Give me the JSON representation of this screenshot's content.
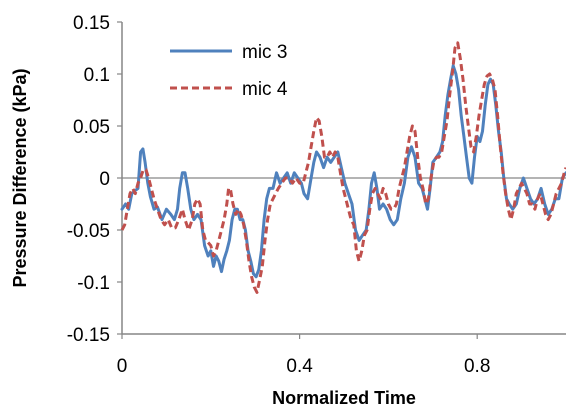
{
  "chart_data": {
    "type": "line",
    "xlabel": "Normalized Time",
    "ylabel": "Pressure Difference (kPa)",
    "xlim": [
      0,
      1
    ],
    "ylim": [
      -0.15,
      0.15
    ],
    "x_ticks": [
      0,
      0.4,
      0.8
    ],
    "x_tick_labels": [
      "0",
      "0.4",
      "0.8"
    ],
    "y_ticks": [
      -0.15,
      -0.1,
      -0.05,
      0,
      0.05,
      0.1,
      0.15
    ],
    "y_tick_labels": [
      "-0.15",
      "-0.1",
      "-0.05",
      "0",
      "0.05",
      "0.1",
      "0.15"
    ],
    "grid": false,
    "zero_line": true,
    "legend": "top-left",
    "series": [
      {
        "name": "mic 3",
        "color": "#4f81bd",
        "dash": "solid",
        "points": [
          [
            0.0,
            -0.03
          ],
          [
            0.008,
            -0.025
          ],
          [
            0.015,
            -0.03
          ],
          [
            0.022,
            -0.015
          ],
          [
            0.03,
            -0.012
          ],
          [
            0.036,
            -0.01
          ],
          [
            0.042,
            0.025
          ],
          [
            0.047,
            0.028
          ],
          [
            0.052,
            0.015
          ],
          [
            0.058,
            -0.005
          ],
          [
            0.064,
            -0.018
          ],
          [
            0.072,
            -0.03
          ],
          [
            0.08,
            -0.028
          ],
          [
            0.09,
            -0.04
          ],
          [
            0.1,
            -0.03
          ],
          [
            0.11,
            -0.035
          ],
          [
            0.118,
            -0.04
          ],
          [
            0.125,
            -0.03
          ],
          [
            0.13,
            -0.01
          ],
          [
            0.136,
            0.005
          ],
          [
            0.142,
            0.005
          ],
          [
            0.148,
            -0.01
          ],
          [
            0.155,
            -0.03
          ],
          [
            0.162,
            -0.04
          ],
          [
            0.17,
            -0.035
          ],
          [
            0.178,
            -0.04
          ],
          [
            0.186,
            -0.065
          ],
          [
            0.194,
            -0.075
          ],
          [
            0.2,
            -0.07
          ],
          [
            0.206,
            -0.085
          ],
          [
            0.212,
            -0.075
          ],
          [
            0.218,
            -0.08
          ],
          [
            0.224,
            -0.09
          ],
          [
            0.23,
            -0.078
          ],
          [
            0.236,
            -0.07
          ],
          [
            0.242,
            -0.06
          ],
          [
            0.248,
            -0.04
          ],
          [
            0.254,
            -0.03
          ],
          [
            0.26,
            -0.03
          ],
          [
            0.266,
            -0.04
          ],
          [
            0.272,
            -0.04
          ],
          [
            0.278,
            -0.05
          ],
          [
            0.284,
            -0.07
          ],
          [
            0.29,
            -0.08
          ],
          [
            0.296,
            -0.092
          ],
          [
            0.302,
            -0.095
          ],
          [
            0.308,
            -0.088
          ],
          [
            0.314,
            -0.07
          ],
          [
            0.32,
            -0.04
          ],
          [
            0.326,
            -0.02
          ],
          [
            0.332,
            -0.01
          ],
          [
            0.34,
            -0.01
          ],
          [
            0.348,
            0.005
          ],
          [
            0.356,
            -0.005
          ],
          [
            0.364,
            0.0
          ],
          [
            0.372,
            0.005
          ],
          [
            0.38,
            -0.005
          ],
          [
            0.388,
            0.005
          ],
          [
            0.396,
            0.0
          ],
          [
            0.404,
            -0.005
          ],
          [
            0.41,
            -0.015
          ],
          [
            0.418,
            -0.02
          ],
          [
            0.426,
            0.0
          ],
          [
            0.432,
            0.015
          ],
          [
            0.438,
            0.025
          ],
          [
            0.446,
            0.02
          ],
          [
            0.454,
            0.01
          ],
          [
            0.462,
            0.02
          ],
          [
            0.47,
            0.015
          ],
          [
            0.478,
            0.02
          ],
          [
            0.486,
            0.025
          ],
          [
            0.494,
            0.01
          ],
          [
            0.502,
            -0.005
          ],
          [
            0.51,
            -0.015
          ],
          [
            0.518,
            -0.025
          ],
          [
            0.526,
            -0.05
          ],
          [
            0.534,
            -0.06
          ],
          [
            0.542,
            -0.055
          ],
          [
            0.55,
            -0.05
          ],
          [
            0.556,
            -0.03
          ],
          [
            0.562,
            -0.005
          ],
          [
            0.568,
            0.005
          ],
          [
            0.574,
            -0.01
          ],
          [
            0.58,
            -0.03
          ],
          [
            0.588,
            -0.025
          ],
          [
            0.596,
            -0.03
          ],
          [
            0.604,
            -0.04
          ],
          [
            0.612,
            -0.045
          ],
          [
            0.62,
            -0.04
          ],
          [
            0.628,
            -0.02
          ],
          [
            0.636,
            -0.005
          ],
          [
            0.644,
            0.02
          ],
          [
            0.652,
            0.03
          ],
          [
            0.66,
            0.02
          ],
          [
            0.668,
            -0.005
          ],
          [
            0.676,
            -0.01
          ],
          [
            0.682,
            -0.02
          ],
          [
            0.688,
            -0.03
          ],
          [
            0.694,
            -0.01
          ],
          [
            0.7,
            0.015
          ],
          [
            0.708,
            0.02
          ],
          [
            0.716,
            0.025
          ],
          [
            0.722,
            0.035
          ],
          [
            0.728,
            0.06
          ],
          [
            0.734,
            0.08
          ],
          [
            0.74,
            0.095
          ],
          [
            0.746,
            0.108
          ],
          [
            0.752,
            0.1
          ],
          [
            0.758,
            0.085
          ],
          [
            0.764,
            0.06
          ],
          [
            0.77,
            0.04
          ],
          [
            0.776,
            0.02
          ],
          [
            0.782,
            0.0
          ],
          [
            0.788,
            -0.005
          ],
          [
            0.794,
            0.02
          ],
          [
            0.8,
            0.04
          ],
          [
            0.806,
            0.035
          ],
          [
            0.812,
            0.045
          ],
          [
            0.818,
            0.07
          ],
          [
            0.824,
            0.09
          ],
          [
            0.83,
            0.095
          ],
          [
            0.836,
            0.09
          ],
          [
            0.842,
            0.07
          ],
          [
            0.848,
            0.045
          ],
          [
            0.854,
            0.025
          ],
          [
            0.86,
            0.0
          ],
          [
            0.866,
            -0.02
          ],
          [
            0.872,
            -0.025
          ],
          [
            0.88,
            -0.03
          ],
          [
            0.888,
            -0.025
          ],
          [
            0.896,
            -0.01
          ],
          [
            0.904,
            0.0
          ],
          [
            0.912,
            -0.01
          ],
          [
            0.92,
            -0.02
          ],
          [
            0.928,
            -0.025
          ],
          [
            0.936,
            -0.02
          ],
          [
            0.944,
            -0.01
          ],
          [
            0.952,
            -0.025
          ],
          [
            0.96,
            -0.035
          ],
          [
            0.968,
            -0.03
          ],
          [
            0.976,
            -0.02
          ],
          [
            0.984,
            -0.02
          ],
          [
            0.992,
            0.0
          ],
          [
            1.0,
            0.005
          ]
        ]
      },
      {
        "name": "mic 4",
        "color": "#c0504d",
        "dash": "dashed",
        "points": [
          [
            0.0,
            -0.05
          ],
          [
            0.006,
            -0.045
          ],
          [
            0.012,
            -0.03
          ],
          [
            0.018,
            -0.015
          ],
          [
            0.024,
            -0.01
          ],
          [
            0.03,
            -0.015
          ],
          [
            0.036,
            -0.005
          ],
          [
            0.042,
            0.0
          ],
          [
            0.048,
            0.008
          ],
          [
            0.054,
            0.008
          ],
          [
            0.06,
            0.0
          ],
          [
            0.066,
            -0.01
          ],
          [
            0.072,
            -0.02
          ],
          [
            0.08,
            -0.03
          ],
          [
            0.088,
            -0.04
          ],
          [
            0.096,
            -0.045
          ],
          [
            0.104,
            -0.04
          ],
          [
            0.112,
            -0.048
          ],
          [
            0.12,
            -0.048
          ],
          [
            0.128,
            -0.04
          ],
          [
            0.136,
            -0.03
          ],
          [
            0.142,
            -0.04
          ],
          [
            0.15,
            -0.05
          ],
          [
            0.158,
            -0.04
          ],
          [
            0.164,
            -0.025
          ],
          [
            0.17,
            -0.02
          ],
          [
            0.176,
            -0.025
          ],
          [
            0.182,
            -0.05
          ],
          [
            0.188,
            -0.06
          ],
          [
            0.194,
            -0.062
          ],
          [
            0.2,
            -0.065
          ],
          [
            0.206,
            -0.075
          ],
          [
            0.212,
            -0.07
          ],
          [
            0.218,
            -0.06
          ],
          [
            0.224,
            -0.05
          ],
          [
            0.23,
            -0.04
          ],
          [
            0.236,
            -0.025
          ],
          [
            0.24,
            -0.01
          ],
          [
            0.244,
            -0.01
          ],
          [
            0.25,
            -0.025
          ],
          [
            0.256,
            -0.035
          ],
          [
            0.262,
            -0.03
          ],
          [
            0.268,
            -0.035
          ],
          [
            0.274,
            -0.045
          ],
          [
            0.28,
            -0.06
          ],
          [
            0.286,
            -0.08
          ],
          [
            0.292,
            -0.095
          ],
          [
            0.298,
            -0.105
          ],
          [
            0.304,
            -0.11
          ],
          [
            0.31,
            -0.098
          ],
          [
            0.316,
            -0.085
          ],
          [
            0.322,
            -0.06
          ],
          [
            0.328,
            -0.04
          ],
          [
            0.334,
            -0.025
          ],
          [
            0.34,
            -0.02
          ],
          [
            0.346,
            -0.015
          ],
          [
            0.352,
            -0.01
          ],
          [
            0.36,
            -0.005
          ],
          [
            0.368,
            0.0
          ],
          [
            0.376,
            0.0
          ],
          [
            0.384,
            -0.005
          ],
          [
            0.392,
            0.0
          ],
          [
            0.4,
            -0.005
          ],
          [
            0.408,
            -0.005
          ],
          [
            0.414,
            0.005
          ],
          [
            0.42,
            0.015
          ],
          [
            0.426,
            0.03
          ],
          [
            0.432,
            0.045
          ],
          [
            0.438,
            0.058
          ],
          [
            0.444,
            0.055
          ],
          [
            0.45,
            0.04
          ],
          [
            0.456,
            0.02
          ],
          [
            0.462,
            0.02
          ],
          [
            0.468,
            0.025
          ],
          [
            0.474,
            0.02
          ],
          [
            0.48,
            0.025
          ],
          [
            0.486,
            0.02
          ],
          [
            0.492,
            0.005
          ],
          [
            0.498,
            -0.01
          ],
          [
            0.504,
            -0.02
          ],
          [
            0.51,
            -0.03
          ],
          [
            0.516,
            -0.04
          ],
          [
            0.522,
            -0.045
          ],
          [
            0.528,
            -0.07
          ],
          [
            0.534,
            -0.08
          ],
          [
            0.54,
            -0.07
          ],
          [
            0.546,
            -0.055
          ],
          [
            0.552,
            -0.05
          ],
          [
            0.558,
            -0.03
          ],
          [
            0.564,
            -0.015
          ],
          [
            0.57,
            -0.01
          ],
          [
            0.576,
            -0.015
          ],
          [
            0.582,
            -0.02
          ],
          [
            0.588,
            -0.01
          ],
          [
            0.594,
            -0.015
          ],
          [
            0.6,
            -0.025
          ],
          [
            0.606,
            -0.03
          ],
          [
            0.612,
            -0.03
          ],
          [
            0.618,
            -0.025
          ],
          [
            0.624,
            -0.01
          ],
          [
            0.63,
            0.0
          ],
          [
            0.636,
            0.01
          ],
          [
            0.642,
            0.025
          ],
          [
            0.648,
            0.04
          ],
          [
            0.654,
            0.05
          ],
          [
            0.66,
            0.045
          ],
          [
            0.666,
            0.02
          ],
          [
            0.672,
            0.0
          ],
          [
            0.678,
            -0.01
          ],
          [
            0.684,
            -0.025
          ],
          [
            0.69,
            -0.02
          ],
          [
            0.696,
            0.0
          ],
          [
            0.702,
            0.015
          ],
          [
            0.708,
            0.02
          ],
          [
            0.714,
            0.02
          ],
          [
            0.72,
            0.025
          ],
          [
            0.726,
            0.04
          ],
          [
            0.732,
            0.055
          ],
          [
            0.738,
            0.08
          ],
          [
            0.744,
            0.1
          ],
          [
            0.75,
            0.125
          ],
          [
            0.756,
            0.13
          ],
          [
            0.762,
            0.115
          ],
          [
            0.768,
            0.095
          ],
          [
            0.774,
            0.07
          ],
          [
            0.78,
            0.05
          ],
          [
            0.786,
            0.03
          ],
          [
            0.792,
            0.025
          ],
          [
            0.798,
            0.04
          ],
          [
            0.804,
            0.06
          ],
          [
            0.81,
            0.075
          ],
          [
            0.816,
            0.09
          ],
          [
            0.822,
            0.098
          ],
          [
            0.828,
            0.1
          ],
          [
            0.834,
            0.095
          ],
          [
            0.84,
            0.085
          ],
          [
            0.846,
            0.06
          ],
          [
            0.852,
            0.03
          ],
          [
            0.858,
            0.005
          ],
          [
            0.864,
            -0.015
          ],
          [
            0.87,
            -0.03
          ],
          [
            0.876,
            -0.04
          ],
          [
            0.882,
            -0.03
          ],
          [
            0.888,
            -0.015
          ],
          [
            0.894,
            -0.01
          ],
          [
            0.9,
            -0.005
          ],
          [
            0.906,
            -0.01
          ],
          [
            0.912,
            -0.015
          ],
          [
            0.918,
            -0.025
          ],
          [
            0.924,
            -0.025
          ],
          [
            0.93,
            -0.03
          ],
          [
            0.936,
            -0.02
          ],
          [
            0.942,
            -0.015
          ],
          [
            0.948,
            -0.025
          ],
          [
            0.954,
            -0.035
          ],
          [
            0.96,
            -0.04
          ],
          [
            0.966,
            -0.035
          ],
          [
            0.972,
            -0.025
          ],
          [
            0.978,
            -0.015
          ],
          [
            0.984,
            -0.01
          ],
          [
            0.99,
            -0.005
          ],
          [
            0.996,
            0.005
          ],
          [
            1.0,
            0.01
          ]
        ]
      }
    ]
  }
}
